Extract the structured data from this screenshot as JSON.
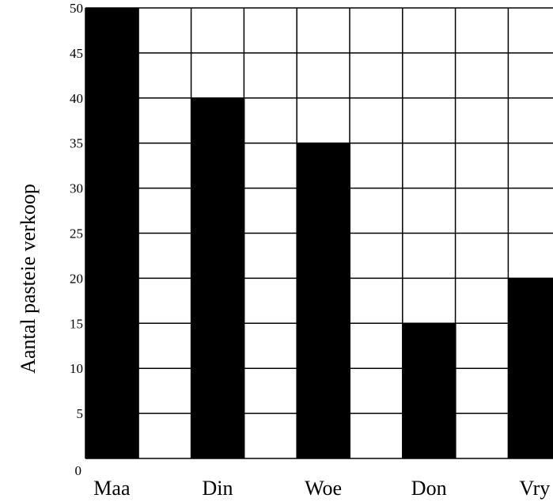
{
  "chart_data": {
    "type": "bar",
    "categories": [
      "Maa",
      "Din",
      "Woe",
      "Don",
      "Vry"
    ],
    "values": [
      50,
      40,
      35,
      15,
      20
    ],
    "ylabel": "Aantal pasteie verkoop",
    "xlabel": "",
    "ylim": [
      0,
      50
    ],
    "yticks": [
      0,
      5,
      10,
      15,
      20,
      25,
      30,
      35,
      40,
      45,
      50
    ],
    "grid": true,
    "bar_color": "#000000",
    "grid_color": "#000000",
    "background": "#ffffff"
  }
}
